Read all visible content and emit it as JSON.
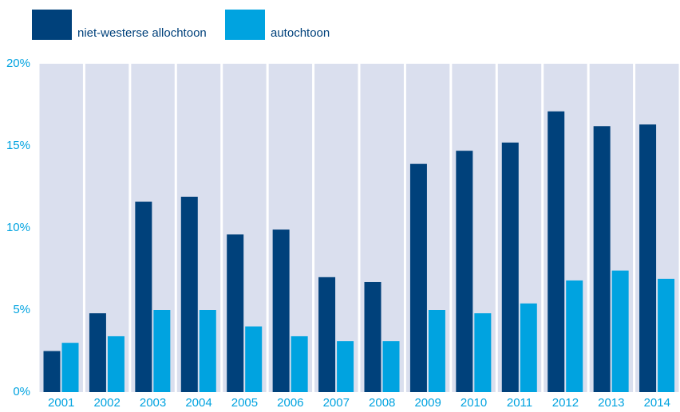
{
  "chart_data": {
    "type": "bar",
    "categories": [
      "2001",
      "2002",
      "2003",
      "2004",
      "2005",
      "2006",
      "2007",
      "2008",
      "2009",
      "2010",
      "2011",
      "2012",
      "2013",
      "2014"
    ],
    "series": [
      {
        "name": "niet-westerse allochtoon",
        "color": "#00417b",
        "values": [
          2.5,
          4.8,
          11.6,
          11.9,
          9.6,
          9.9,
          7.0,
          6.7,
          13.9,
          14.7,
          15.2,
          17.1,
          16.2,
          16.3
        ]
      },
      {
        "name": "autochtoon",
        "color": "#00a3e0",
        "values": [
          3.0,
          3.4,
          5.0,
          5.0,
          4.0,
          3.4,
          3.1,
          3.1,
          5.0,
          4.8,
          5.4,
          6.8,
          7.4,
          6.9
        ]
      }
    ],
    "ylim": [
      0,
      20
    ],
    "yticks": [
      {
        "value": 0,
        "label": "0%"
      },
      {
        "value": 5,
        "label": "5%"
      },
      {
        "value": 10,
        "label": "10%"
      },
      {
        "value": 15,
        "label": "15%"
      },
      {
        "value": 20,
        "label": "20%"
      }
    ],
    "tick_color": "#00a3e0",
    "background_color": "#dadfee"
  }
}
